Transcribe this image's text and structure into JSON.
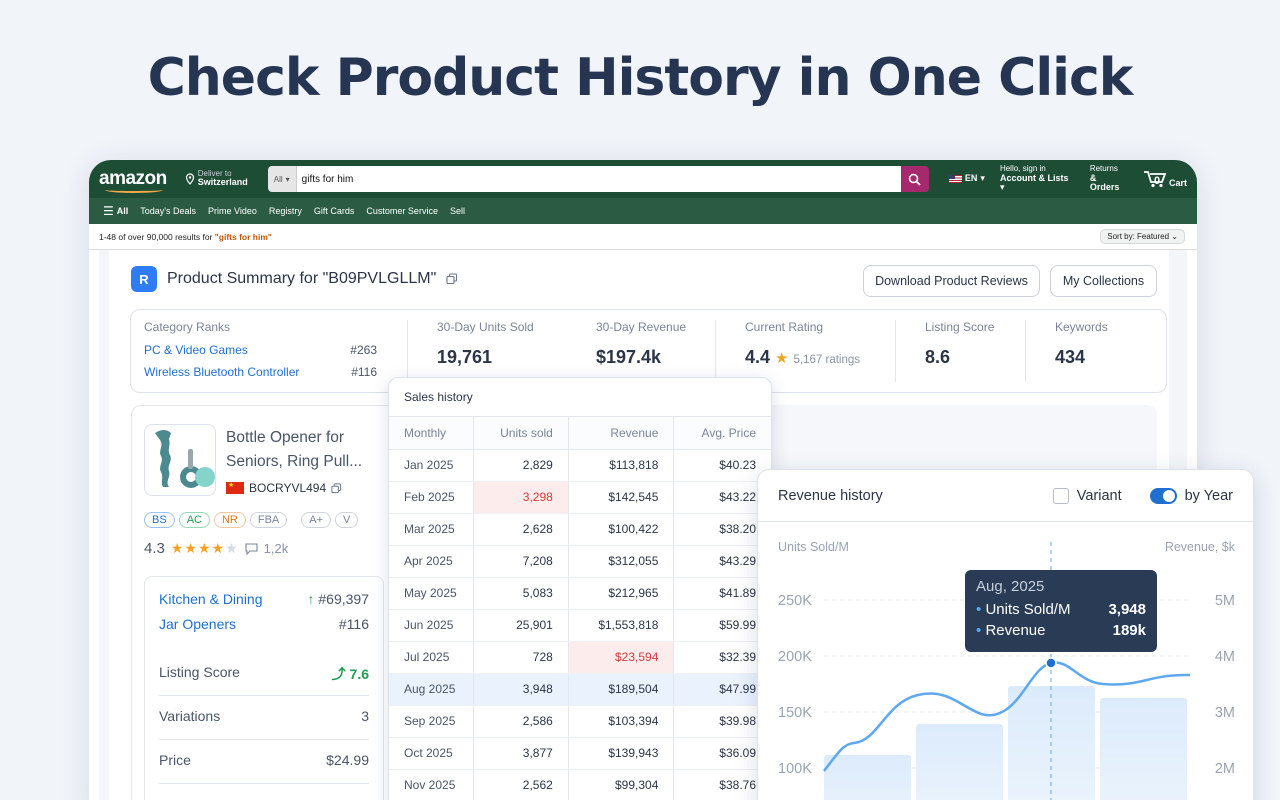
{
  "headline": "Check Product History in One Click",
  "amazon": {
    "logo": "amazon",
    "deliver_small": "Deliver to",
    "deliver_place": "Switzerland",
    "search_category": "All",
    "search_value": "gifts for him",
    "lang": "EN",
    "account_small": "Hello, sign in",
    "account_label": "Account & Lists",
    "returns_small": "Returns",
    "orders_label": "& Orders",
    "cart_count": "0",
    "cart_label": "Cart",
    "nav_all": "All",
    "nav_items": [
      "Today's Deals",
      "Prime Video",
      "Registry",
      "Gift Cards",
      "Customer Service",
      "Sell"
    ],
    "results_prefix": "1-48 of over 90,000 results for ",
    "results_query": "\"gifts for him\"",
    "sort_label": "Sort by: Featured"
  },
  "summary": {
    "title": "Product Summary for \"B09PVLGLLM\"",
    "download_button": "Download Product Reviews",
    "collections_button": "My Collections",
    "category_ranks_label": "Category Ranks",
    "ranks": [
      {
        "name": "PC & Video Games",
        "rank": "#263"
      },
      {
        "name": "Wireless Bluetooth Controller",
        "rank": "#116"
      }
    ],
    "stats": [
      {
        "label": "30-Day Units Sold",
        "value": "19,761"
      },
      {
        "label": "30-Day Revenue",
        "value": "$197.4k"
      },
      {
        "label": "Current Rating",
        "value": "4.4",
        "extra": "5,167 ratings"
      },
      {
        "label": "Listing Score",
        "value": "8.6"
      },
      {
        "label": "Keywords",
        "value": "434"
      }
    ]
  },
  "product": {
    "name": "Bottle Opener for Seniors, Ring Pull...",
    "asin": "BOCRYVL494",
    "tags": [
      "BS",
      "AC",
      "NR",
      "FBA",
      "A+",
      "V"
    ],
    "tag_colors": [
      "#1f6fd1",
      "#1e9e55",
      "#e0781a",
      "#7a8599",
      "#7a8599",
      "#7a8599"
    ],
    "rating": "4.3",
    "stars": 4,
    "reviews": "1,2k",
    "category1": "Kitchen & Dining",
    "category1_rank": "#69,397",
    "category2": "Jar Openers",
    "category2_rank": "#116",
    "listing_score_label": "Listing Score",
    "listing_score": "7.6",
    "variations_label": "Variations",
    "variations": "3",
    "price_label": "Price",
    "price": "$24.99"
  },
  "sales": {
    "title": "Sales history",
    "columns": [
      "Monthly",
      "Units sold",
      "Revenue",
      "Avg. Price"
    ],
    "rows": [
      [
        "Jan 2025",
        "2,829",
        "$113,818",
        "$40.23"
      ],
      [
        "Feb 2025",
        "3,298",
        "$142,545",
        "$43.22"
      ],
      [
        "Mar 2025",
        "2,628",
        "$100,422",
        "$38.20"
      ],
      [
        "Apr 2025",
        "7,208",
        "$312,055",
        "$43.29"
      ],
      [
        "May 2025",
        "5,083",
        "$212,965",
        "$41.89"
      ],
      [
        "Jun 2025",
        "25,901",
        "$1,553,818",
        "$59.99"
      ],
      [
        "Jul 2025",
        "728",
        "$23,594",
        "$32.39"
      ],
      [
        "Aug 2025",
        "3,948",
        "$189,504",
        "$47.99"
      ],
      [
        "Sep 2025",
        "2,586",
        "$103,394",
        "$39.98"
      ],
      [
        "Oct 2025",
        "3,877",
        "$139,943",
        "$36.09"
      ],
      [
        "Nov 2025",
        "2,562",
        "$99,304",
        "$38.76"
      ]
    ],
    "highlight_row": 7,
    "red_cells": [
      [
        1,
        1
      ],
      [
        6,
        2
      ]
    ]
  },
  "revenue": {
    "title": "Revenue history",
    "variant_label": "Variant",
    "by_year_label": "by Year",
    "left_axis_label": "Units Sold/M",
    "right_axis_label": "Revenue, $k",
    "left_ticks": [
      "250K",
      "200K",
      "150K",
      "100K"
    ],
    "right_ticks": [
      "5M",
      "4M",
      "3M",
      "2M"
    ],
    "tooltip_title": "Aug, 2025",
    "tooltip_units_label": "Units Sold/M",
    "tooltip_units_value": "3,948",
    "tooltip_revenue_label": "Revenue",
    "tooltip_revenue_value": "189k",
    "accent": "#5ea8ef"
  }
}
